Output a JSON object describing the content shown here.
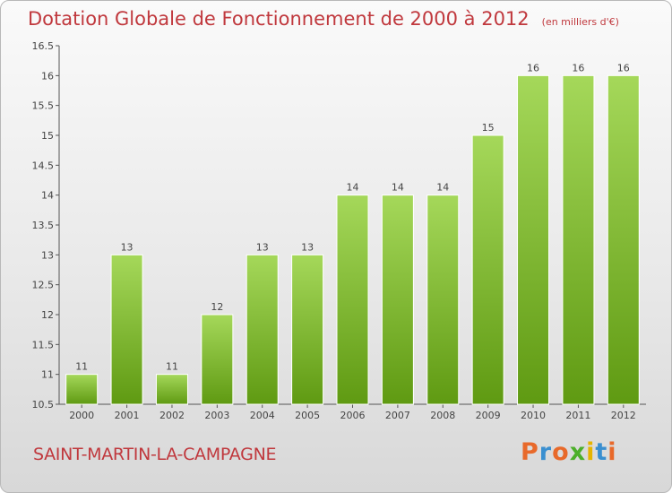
{
  "header": {
    "title": "Dotation Globale de Fonctionnement de 2000 à 2012",
    "subtitle": "(en milliers d'€)"
  },
  "footer": {
    "commune": "SAINT-MARTIN-LA-CAMPAGNE",
    "logo": "Proxiti"
  },
  "colors": {
    "title": "#c0383d",
    "bar_light": "#a5d85a",
    "bar_dark": "#5f9a12"
  },
  "chart_data": {
    "type": "bar",
    "title": "Dotation Globale de Fonctionnement de 2000 à 2012",
    "subtitle": "(en milliers d'€)",
    "categories": [
      "2000",
      "2001",
      "2002",
      "2003",
      "2004",
      "2005",
      "2006",
      "2007",
      "2008",
      "2009",
      "2010",
      "2011",
      "2012"
    ],
    "values": [
      11,
      13,
      11,
      12,
      13,
      13,
      14,
      14,
      14,
      15,
      16,
      16,
      16
    ],
    "ylim": [
      10.5,
      16.5
    ],
    "yticks": [
      "10.5",
      "11",
      "11.5",
      "12",
      "12.5",
      "13",
      "13.5",
      "14",
      "14.5",
      "15",
      "15.5",
      "16",
      "16.5"
    ],
    "xlabel": "",
    "ylabel": "",
    "grid": false,
    "data_labels": true
  }
}
